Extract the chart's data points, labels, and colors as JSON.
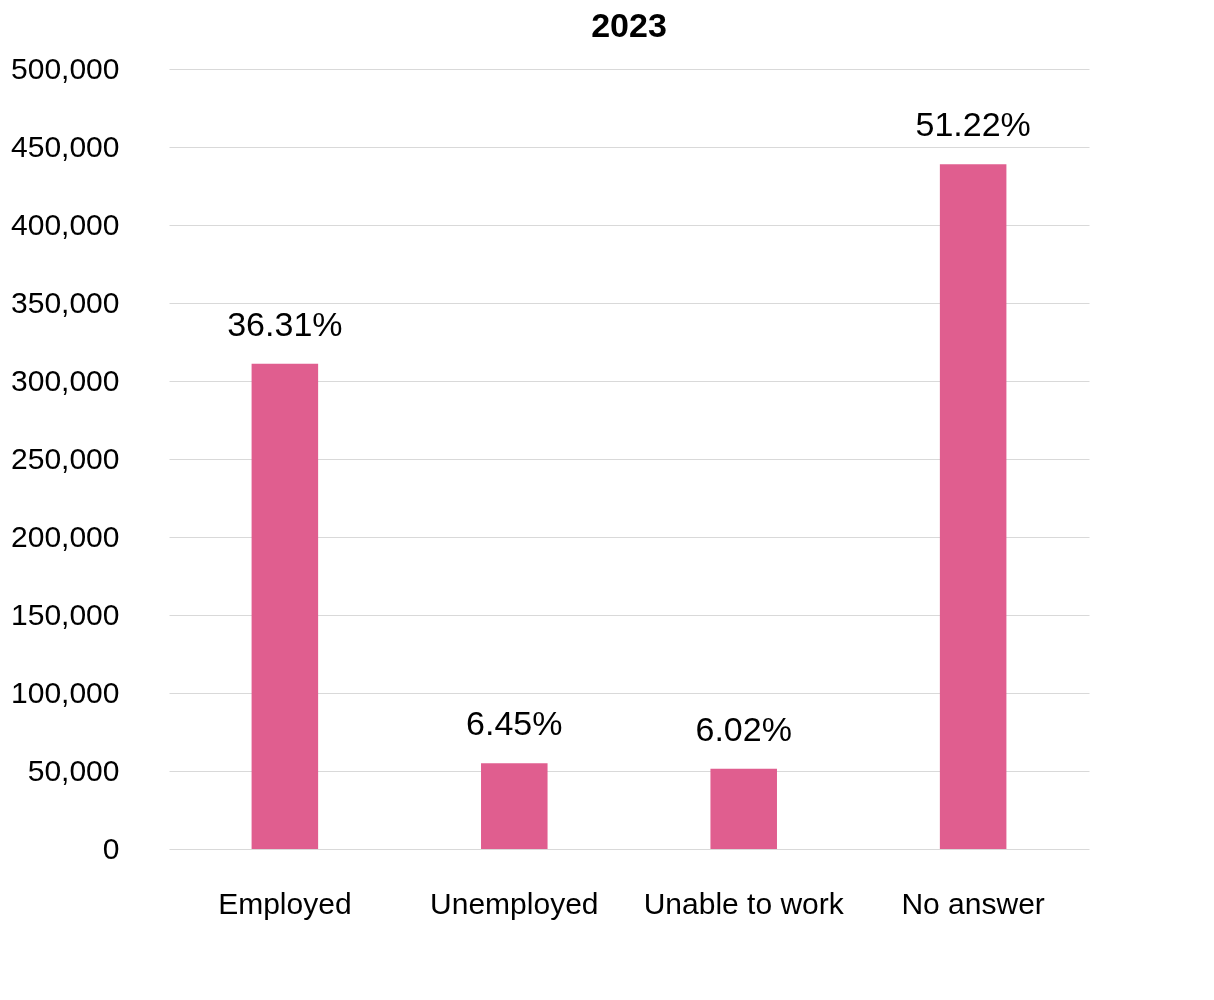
{
  "chart_data": {
    "type": "bar",
    "title": "2023",
    "categories": [
      "Employed",
      "Unemployed",
      "Unable to work",
      "No answer"
    ],
    "values": [
      311000,
      55000,
      51500,
      439000
    ],
    "annotations": [
      {
        "text": "36.31%",
        "x": "Employed",
        "y": 311000
      },
      {
        "text": "6.45%",
        "x": "Unemployed",
        "y": 55000
      },
      {
        "text": "6.02%",
        "x": "Unable to work",
        "y": 51500
      },
      {
        "text": "51.22%",
        "x": "No answer",
        "y": 439000
      }
    ],
    "color": "#e05e8f",
    "ylim": [
      0,
      500000
    ],
    "yticks": [
      0,
      {
        "value": 50000,
        "label": "50,000"
      },
      {
        "value": 100000,
        "label": "100,000"
      },
      {
        "value": 150000,
        "label": "150,000"
      },
      {
        "value": 200000,
        "label": "200,000"
      },
      {
        "value": 250000,
        "label": "250,000"
      },
      {
        "value": 300000,
        "label": "300,000"
      },
      {
        "value": 350000,
        "label": "350,000"
      },
      {
        "value": 400000,
        "label": "400,000"
      },
      {
        "value": 450000,
        "label": "450,000"
      },
      {
        "value": 500000,
        "label": "500,000"
      }
    ],
    "grid": "y"
  }
}
